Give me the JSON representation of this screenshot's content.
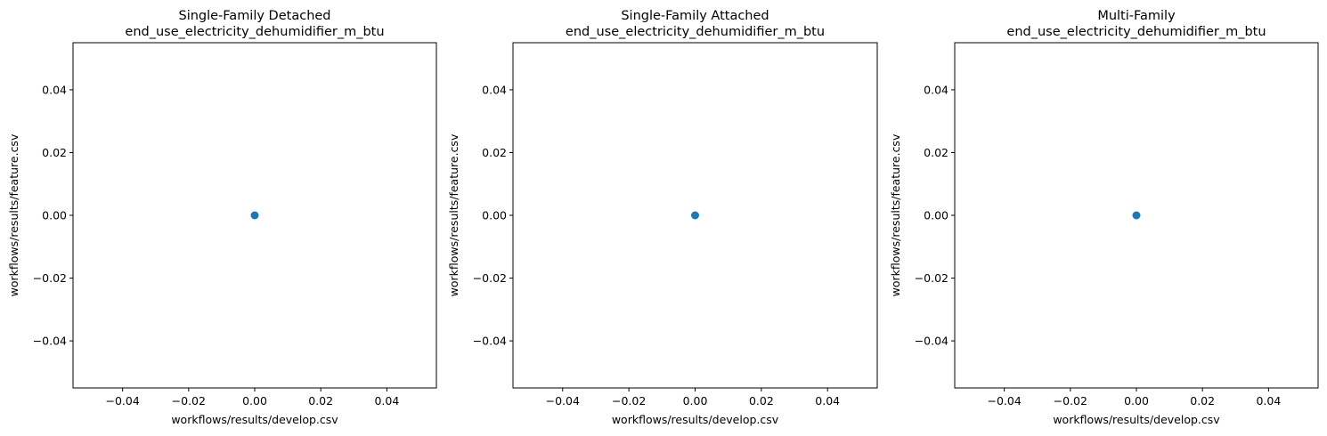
{
  "chart_data": [
    {
      "type": "scatter",
      "title": "Single-Family Detached",
      "subtitle": "end_use_electricity_dehumidifier_m_btu",
      "xlabel": "workflows/results/develop.csv",
      "ylabel": "workflows/results/feature.csv",
      "xlim": [
        -0.055,
        0.055
      ],
      "ylim": [
        -0.055,
        0.055
      ],
      "xticks": [
        -0.04,
        -0.02,
        0.0,
        0.02,
        0.04
      ],
      "yticks": [
        -0.04,
        -0.02,
        0.0,
        0.02,
        0.04
      ],
      "xtick_labels": [
        "−0.04",
        "−0.02",
        "0.00",
        "0.02",
        "0.04"
      ],
      "ytick_labels": [
        "−0.04",
        "−0.02",
        "0.00",
        "0.02",
        "0.04"
      ],
      "grid": false,
      "points": [
        {
          "x": 0,
          "y": 0
        }
      ],
      "marker_color": "#1f77b4"
    },
    {
      "type": "scatter",
      "title": "Single-Family Attached",
      "subtitle": "end_use_electricity_dehumidifier_m_btu",
      "xlabel": "workflows/results/develop.csv",
      "ylabel": "workflows/results/feature.csv",
      "xlim": [
        -0.055,
        0.055
      ],
      "ylim": [
        -0.055,
        0.055
      ],
      "xticks": [
        -0.04,
        -0.02,
        0.0,
        0.02,
        0.04
      ],
      "yticks": [
        -0.04,
        -0.02,
        0.0,
        0.02,
        0.04
      ],
      "xtick_labels": [
        "−0.04",
        "−0.02",
        "0.00",
        "0.02",
        "0.04"
      ],
      "ytick_labels": [
        "−0.04",
        "−0.02",
        "0.00",
        "0.02",
        "0.04"
      ],
      "grid": false,
      "points": [
        {
          "x": 0,
          "y": 0
        }
      ],
      "marker_color": "#1f77b4"
    },
    {
      "type": "scatter",
      "title": "Multi-Family",
      "subtitle": "end_use_electricity_dehumidifier_m_btu",
      "xlabel": "workflows/results/develop.csv",
      "ylabel": "workflows/results/feature.csv",
      "xlim": [
        -0.055,
        0.055
      ],
      "ylim": [
        -0.055,
        0.055
      ],
      "xticks": [
        -0.04,
        -0.02,
        0.0,
        0.02,
        0.04
      ],
      "yticks": [
        -0.04,
        -0.02,
        0.0,
        0.02,
        0.04
      ],
      "xtick_labels": [
        "−0.04",
        "−0.02",
        "0.00",
        "0.02",
        "0.04"
      ],
      "ytick_labels": [
        "−0.04",
        "−0.02",
        "0.00",
        "0.02",
        "0.04"
      ],
      "grid": false,
      "points": [
        {
          "x": 0,
          "y": 0
        }
      ],
      "marker_color": "#1f77b4"
    }
  ]
}
